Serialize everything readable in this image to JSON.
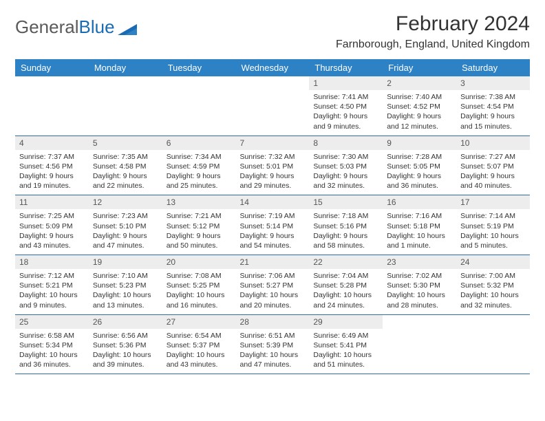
{
  "logo": {
    "part1": "General",
    "part2": "Blue"
  },
  "title": "February 2024",
  "location": "Farnborough, England, United Kingdom",
  "colors": {
    "header_bg": "#2d82c6",
    "row_border": "#2d6da3",
    "daynum_bg": "#ededed",
    "logo_blue": "#1a6bb3"
  },
  "columns": [
    "Sunday",
    "Monday",
    "Tuesday",
    "Wednesday",
    "Thursday",
    "Friday",
    "Saturday"
  ],
  "weeks": [
    [
      null,
      null,
      null,
      null,
      {
        "n": "1",
        "sr": "7:41 AM",
        "ss": "4:50 PM",
        "dl": "9 hours and 9 minutes."
      },
      {
        "n": "2",
        "sr": "7:40 AM",
        "ss": "4:52 PM",
        "dl": "9 hours and 12 minutes."
      },
      {
        "n": "3",
        "sr": "7:38 AM",
        "ss": "4:54 PM",
        "dl": "9 hours and 15 minutes."
      }
    ],
    [
      {
        "n": "4",
        "sr": "7:37 AM",
        "ss": "4:56 PM",
        "dl": "9 hours and 19 minutes."
      },
      {
        "n": "5",
        "sr": "7:35 AM",
        "ss": "4:58 PM",
        "dl": "9 hours and 22 minutes."
      },
      {
        "n": "6",
        "sr": "7:34 AM",
        "ss": "4:59 PM",
        "dl": "9 hours and 25 minutes."
      },
      {
        "n": "7",
        "sr": "7:32 AM",
        "ss": "5:01 PM",
        "dl": "9 hours and 29 minutes."
      },
      {
        "n": "8",
        "sr": "7:30 AM",
        "ss": "5:03 PM",
        "dl": "9 hours and 32 minutes."
      },
      {
        "n": "9",
        "sr": "7:28 AM",
        "ss": "5:05 PM",
        "dl": "9 hours and 36 minutes."
      },
      {
        "n": "10",
        "sr": "7:27 AM",
        "ss": "5:07 PM",
        "dl": "9 hours and 40 minutes."
      }
    ],
    [
      {
        "n": "11",
        "sr": "7:25 AM",
        "ss": "5:09 PM",
        "dl": "9 hours and 43 minutes."
      },
      {
        "n": "12",
        "sr": "7:23 AM",
        "ss": "5:10 PM",
        "dl": "9 hours and 47 minutes."
      },
      {
        "n": "13",
        "sr": "7:21 AM",
        "ss": "5:12 PM",
        "dl": "9 hours and 50 minutes."
      },
      {
        "n": "14",
        "sr": "7:19 AM",
        "ss": "5:14 PM",
        "dl": "9 hours and 54 minutes."
      },
      {
        "n": "15",
        "sr": "7:18 AM",
        "ss": "5:16 PM",
        "dl": "9 hours and 58 minutes."
      },
      {
        "n": "16",
        "sr": "7:16 AM",
        "ss": "5:18 PM",
        "dl": "10 hours and 1 minute."
      },
      {
        "n": "17",
        "sr": "7:14 AM",
        "ss": "5:19 PM",
        "dl": "10 hours and 5 minutes."
      }
    ],
    [
      {
        "n": "18",
        "sr": "7:12 AM",
        "ss": "5:21 PM",
        "dl": "10 hours and 9 minutes."
      },
      {
        "n": "19",
        "sr": "7:10 AM",
        "ss": "5:23 PM",
        "dl": "10 hours and 13 minutes."
      },
      {
        "n": "20",
        "sr": "7:08 AM",
        "ss": "5:25 PM",
        "dl": "10 hours and 16 minutes."
      },
      {
        "n": "21",
        "sr": "7:06 AM",
        "ss": "5:27 PM",
        "dl": "10 hours and 20 minutes."
      },
      {
        "n": "22",
        "sr": "7:04 AM",
        "ss": "5:28 PM",
        "dl": "10 hours and 24 minutes."
      },
      {
        "n": "23",
        "sr": "7:02 AM",
        "ss": "5:30 PM",
        "dl": "10 hours and 28 minutes."
      },
      {
        "n": "24",
        "sr": "7:00 AM",
        "ss": "5:32 PM",
        "dl": "10 hours and 32 minutes."
      }
    ],
    [
      {
        "n": "25",
        "sr": "6:58 AM",
        "ss": "5:34 PM",
        "dl": "10 hours and 36 minutes."
      },
      {
        "n": "26",
        "sr": "6:56 AM",
        "ss": "5:36 PM",
        "dl": "10 hours and 39 minutes."
      },
      {
        "n": "27",
        "sr": "6:54 AM",
        "ss": "5:37 PM",
        "dl": "10 hours and 43 minutes."
      },
      {
        "n": "28",
        "sr": "6:51 AM",
        "ss": "5:39 PM",
        "dl": "10 hours and 47 minutes."
      },
      {
        "n": "29",
        "sr": "6:49 AM",
        "ss": "5:41 PM",
        "dl": "10 hours and 51 minutes."
      },
      null,
      null
    ]
  ],
  "labels": {
    "sunrise": "Sunrise: ",
    "sunset": "Sunset: ",
    "daylight": "Daylight: "
  }
}
